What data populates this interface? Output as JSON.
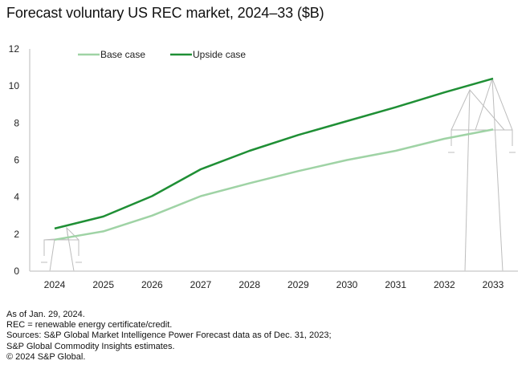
{
  "title": "Forecast voluntary US REC market, 2024–33 ($B)",
  "chart_data": {
    "type": "line",
    "title": "Forecast voluntary US REC market, 2024–33 ($B)",
    "xlabel": "",
    "ylabel": "",
    "categories": [
      "2024",
      "2025",
      "2026",
      "2027",
      "2028",
      "2029",
      "2030",
      "2031",
      "2032",
      "2033"
    ],
    "ylim": [
      0,
      12
    ],
    "yticks": [
      0,
      2,
      4,
      6,
      8,
      10,
      12
    ],
    "grid": false,
    "legend_position": "top-center",
    "series": [
      {
        "name": "Base case",
        "color": "#9fd3a5",
        "values": [
          1.7,
          2.15,
          3.0,
          4.05,
          4.75,
          5.4,
          6.0,
          6.5,
          7.15,
          7.65
        ]
      },
      {
        "name": "Upside case",
        "color": "#1f8f35",
        "values": [
          2.3,
          2.95,
          4.05,
          5.5,
          6.5,
          7.35,
          8.1,
          8.85,
          9.65,
          10.4
        ]
      }
    ]
  },
  "notes": [
    "As of Jan. 29, 2024.",
    "REC = renewable energy certificate/credit.",
    "Sources: S&P Global Market Intelligence Power Forecast data as of Dec. 31, 2023;",
    "S&P Global Commodity Insights estimates.",
    "© 2024 S&P Global."
  ]
}
